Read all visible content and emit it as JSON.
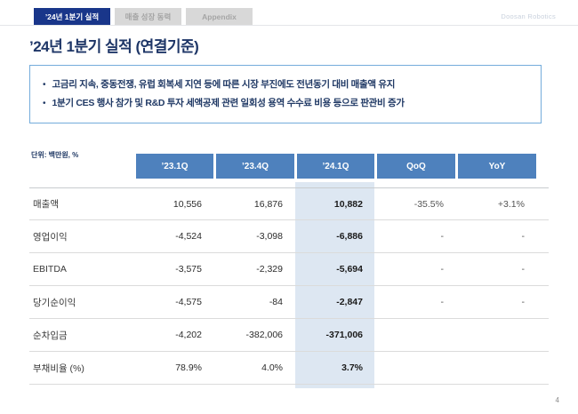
{
  "header": {
    "tabs": [
      {
        "label": "’24년 1분기 실적",
        "active": true
      },
      {
        "label": "매출 성장 동력",
        "active": false
      },
      {
        "label": "Appendix",
        "active": false
      }
    ],
    "watermark": "Doosan Robotics"
  },
  "title": "’24년 1분기 실적 (연결기준)",
  "highlights": {
    "bullets": [
      "고금리 지속, 중동전쟁, 유럽 회복세 지연 등에 따른 시장 부진에도 전년동기 대비 매출액 유지",
      "1분기 CES 행사 참가 및 R&D 투자 세액공제 관련 일회성 용역 수수료 비용 등으로 판관비 증가"
    ]
  },
  "table": {
    "unit_label": "단위: 백만원, %",
    "columns": [
      "’23.1Q",
      "’23.4Q",
      "’24.1Q",
      "QoQ",
      "YoY"
    ],
    "current_column_index": 2,
    "rows": [
      {
        "label": "매출액",
        "values": [
          "10,556",
          "16,876",
          "10,882",
          "-35.5%",
          "+3.1%"
        ]
      },
      {
        "label": "영업이익",
        "values": [
          "-4,524",
          "-3,098",
          "-6,886",
          "-",
          "-"
        ]
      },
      {
        "label": "EBITDA",
        "values": [
          "-3,575",
          "-2,329",
          "-5,694",
          "-",
          "-"
        ]
      },
      {
        "label": "당기순이익",
        "values": [
          "-4,575",
          "-84",
          "-2,847",
          "-",
          "-"
        ]
      },
      {
        "label": "순차입금",
        "values": [
          "-4,202",
          "-382,006",
          "-371,006",
          "",
          ""
        ]
      },
      {
        "label": "부채비율 (%)",
        "values": [
          "78.9%",
          "4.0%",
          "3.7%",
          "",
          ""
        ]
      }
    ]
  },
  "footer": {
    "page_number": "4"
  },
  "colors": {
    "accent_navy": "#19368A",
    "title_navy": "#1E3667",
    "table_header_blue": "#4E81BD",
    "highlight_column": "#DDE7F2",
    "box_border_blue": "#74ACDB"
  }
}
